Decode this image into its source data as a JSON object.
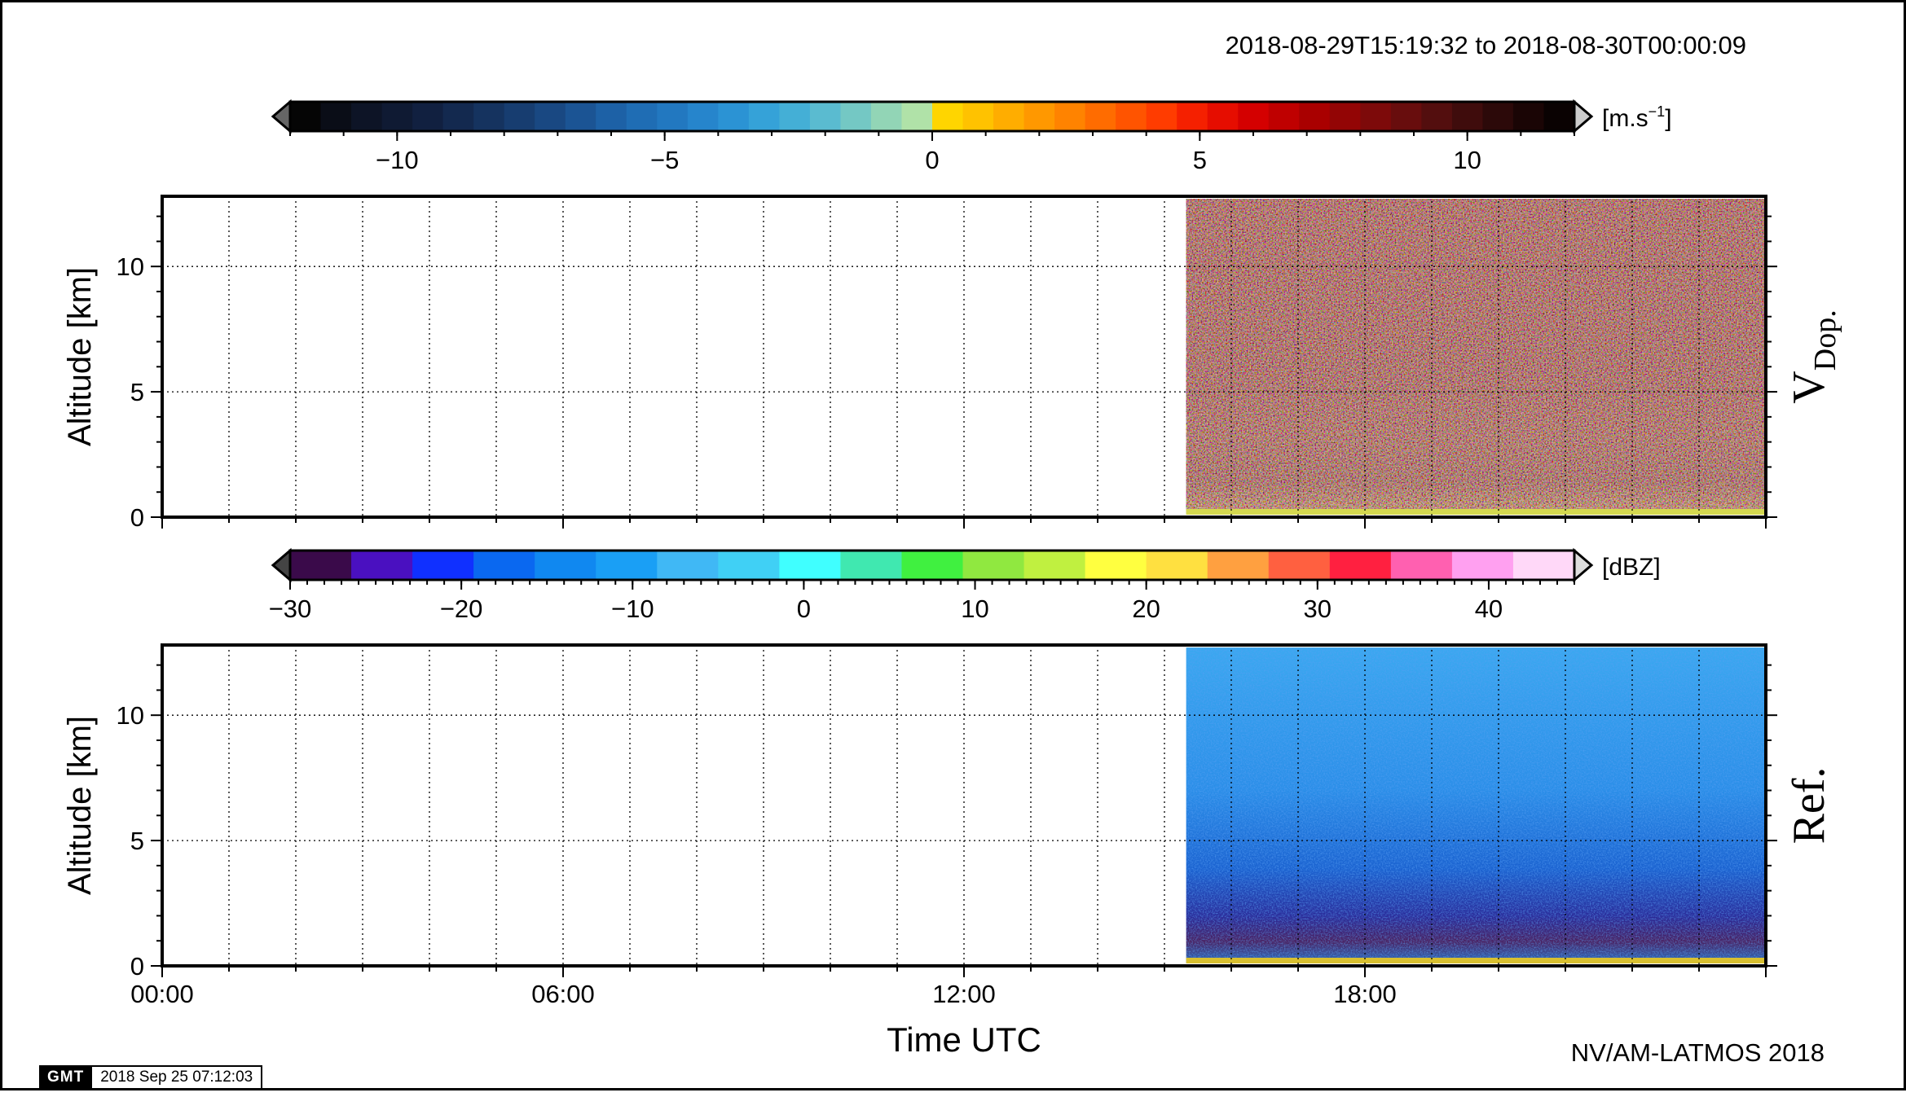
{
  "header": {
    "time_range": "2018-08-29T15:19:32 to 2018-08-30T00:00:09",
    "credit": "NV/AM-LATMOS 2018"
  },
  "gmt_stamp": {
    "logo": "GMT",
    "date": "2018 Sep 25 07:12:03"
  },
  "colors": {
    "velocity_palette": [
      "#050505",
      "#0a0d17",
      "#0d1426",
      "#0f1a33",
      "#112040",
      "#13294f",
      "#15335f",
      "#173d70",
      "#194882",
      "#1b5494",
      "#1d61a6",
      "#1f6db4",
      "#2278c0",
      "#2685cc",
      "#2b93d4",
      "#35a2d8",
      "#44afd6",
      "#5abbd0",
      "#74c8c4",
      "#92d5b6",
      "#b0e2a8",
      "#ffd500",
      "#ffc200",
      "#ffad00",
      "#ff9800",
      "#ff8300",
      "#ff6c00",
      "#ff5400",
      "#ff3c00",
      "#f52000",
      "#e60d00",
      "#d40000",
      "#bf0000",
      "#a90000",
      "#930505",
      "#7d0a0a",
      "#680d0d",
      "#530e0e",
      "#3f0c0c",
      "#2c0909",
      "#1a0505",
      "#0a0202"
    ],
    "reflectivity_palette": [
      "#3a0a4a",
      "#4a10c0",
      "#1030ff",
      "#0a68f0",
      "#1088f0",
      "#1a9ff5",
      "#40b8f5",
      "#40d0f5",
      "#40ffff",
      "#40e8b0",
      "#40f040",
      "#90e840",
      "#c0f040",
      "#ffff40",
      "#ffe040",
      "#ffa040",
      "#ff6040",
      "#ff2040",
      "#ff60b0",
      "#ffa0f0",
      "#ffd8f8"
    ]
  },
  "chart_data": [
    {
      "type": "heatmap",
      "panel_label": "V",
      "panel_label_sub": "Dop.",
      "ylabel": "Altitude [km]",
      "ylim": [
        0,
        12.8
      ],
      "yticks": [
        0,
        5,
        10
      ],
      "xlim": [
        0,
        24
      ],
      "data_start_hour": 15.325,
      "data_end_hour": 24.0,
      "grid": true,
      "colorbar": {
        "unit_base": "[m.s",
        "unit_exp": "−1",
        "unit_close": "]",
        "range": [
          -12,
          12
        ],
        "ticks": [
          -10,
          -5,
          0,
          5,
          10
        ],
        "tick_labels": [
          "−10",
          "−5",
          "0",
          "5",
          "10"
        ]
      }
    },
    {
      "type": "heatmap",
      "panel_label": "Ref.",
      "ylabel": "Altitude [km]",
      "ylim": [
        0,
        12.8
      ],
      "yticks": [
        0,
        5,
        10
      ],
      "xlim": [
        0,
        24
      ],
      "data_start_hour": 15.325,
      "data_end_hour": 24.0,
      "grid": true,
      "xlabel": "Time UTC",
      "xticks": [
        0,
        6,
        12,
        18
      ],
      "xtick_labels": [
        "00:00",
        "06:00",
        "12:00",
        "18:00"
      ],
      "colorbar": {
        "unit": "[dBZ]",
        "range": [
          -30,
          45
        ],
        "ticks": [
          -30,
          -20,
          -10,
          0,
          10,
          20,
          30,
          40
        ],
        "tick_labels": [
          "−30",
          "−20",
          "−10",
          "0",
          "10",
          "20",
          "30",
          "40"
        ]
      }
    }
  ]
}
